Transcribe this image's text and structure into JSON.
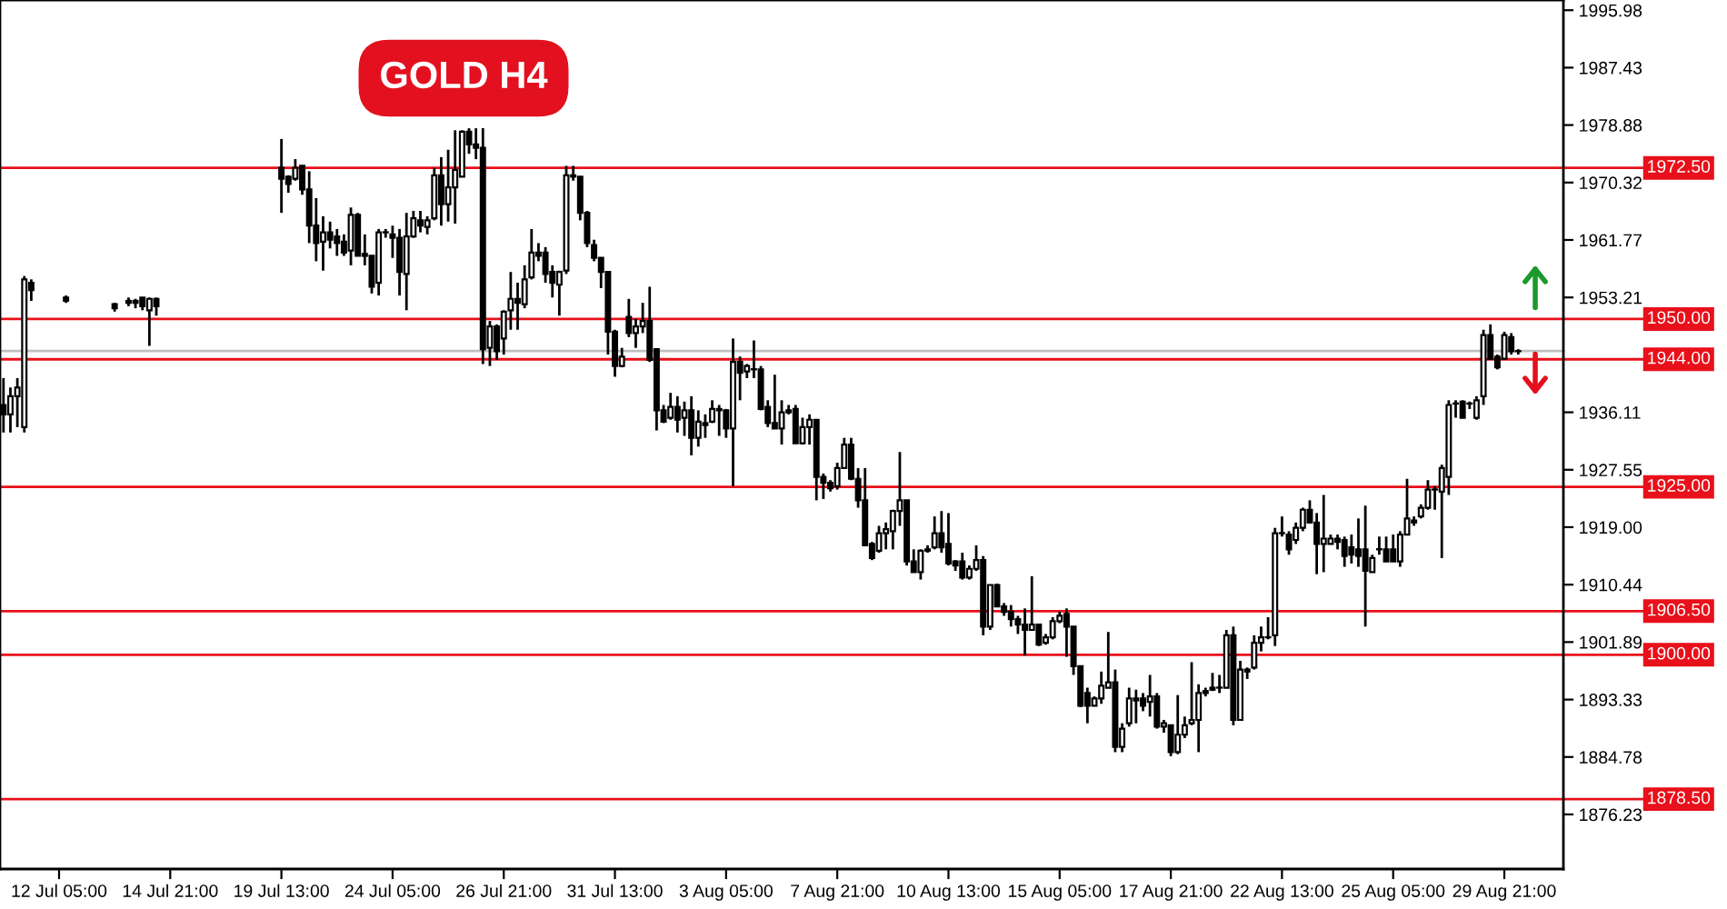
{
  "chart_data": {
    "type": "candlestick",
    "title": "GOLD H4",
    "categories": [
      null,
      null,
      null,
      null,
      null,
      null,
      null,
      null,
      "12 Jul 05:00",
      null,
      null,
      null,
      null,
      null,
      null,
      null,
      null,
      null,
      null,
      null,
      null,
      null,
      null,
      null,
      "14 Jul 21:00",
      null,
      null,
      null,
      null,
      null,
      null,
      null,
      null,
      null,
      null,
      null,
      null,
      null,
      null,
      null,
      "19 Jul 13:00",
      null,
      null,
      null,
      null,
      null,
      null,
      null,
      null,
      null,
      null,
      null,
      null,
      null,
      null,
      null,
      "24 Jul 05:00",
      null,
      null,
      null,
      null,
      null,
      null,
      null,
      null,
      null,
      null,
      null,
      null,
      null,
      null,
      null,
      "26 Jul 21:00",
      null,
      null,
      null,
      null,
      null,
      null,
      null,
      null,
      null,
      null,
      null,
      null,
      null,
      null,
      null,
      "31 Jul 13:00",
      null,
      null,
      null,
      null,
      null,
      null,
      null,
      null,
      null,
      null,
      null,
      null,
      null,
      null,
      null,
      "3 Aug 05:00",
      null,
      null,
      null,
      null,
      null,
      null,
      null,
      null,
      null,
      null,
      null,
      null,
      null,
      null,
      null,
      "7 Aug 21:00",
      null,
      null,
      null,
      null,
      null,
      null,
      null,
      null,
      null,
      null,
      null,
      null,
      null,
      null,
      null,
      "10 Aug 13:00",
      null,
      null,
      null,
      null,
      null,
      null,
      null,
      null,
      null,
      null,
      null,
      null,
      null,
      null,
      null,
      "15 Aug 05:00",
      null,
      null,
      null,
      null,
      null,
      null,
      null,
      null,
      null,
      null,
      null,
      null,
      null,
      null,
      null,
      "17 Aug 21:00",
      null,
      null,
      null,
      null,
      null,
      null,
      null,
      null,
      null,
      null,
      null,
      null,
      null,
      null,
      null,
      "22 Aug 13:00",
      null,
      null,
      null,
      null,
      null,
      null,
      null,
      null,
      null,
      null,
      null,
      null,
      null,
      null,
      null,
      "25 Aug 05:00",
      null,
      null,
      null,
      null,
      null,
      null,
      null,
      null,
      null,
      null,
      null,
      null,
      null,
      null,
      null,
      "29 Aug 21:00",
      null,
      null
    ],
    "ohlc": [
      [
        1937.2,
        1941.2,
        1933.1,
        1935.8
      ],
      [
        1935.8,
        1939.8,
        1933.1,
        1938.5
      ],
      [
        1938.5,
        1941.2,
        1933.9,
        1939.8
      ],
      [
        1933.9,
        1956.4,
        1933.1,
        1955.9
      ],
      [
        1955.4,
        1955.9,
        1952.7,
        1954.3
      ],
      null,
      null,
      null,
      null,
      [
        1953.2,
        1953.5,
        1952.4,
        1952.7
      ],
      null,
      null,
      null,
      null,
      null,
      null,
      [
        1952.2,
        1952.4,
        1951.1,
        1951.6
      ],
      null,
      [
        1952.7,
        1953.2,
        1951.9,
        1952.4
      ],
      [
        1952.4,
        1953.0,
        1951.6,
        1952.7
      ],
      [
        1953.2,
        1953.2,
        1951.3,
        1951.9
      ],
      [
        1951.3,
        1953.2,
        1946.0,
        1953.0
      ],
      [
        1953.0,
        1953.2,
        1950.5,
        1951.9
      ],
      null,
      null,
      null,
      null,
      null,
      null,
      null,
      null,
      null,
      null,
      null,
      null,
      null,
      null,
      null,
      null,
      null,
      [
        1972.5,
        1976.8,
        1965.8,
        1970.9
      ],
      [
        1971.2,
        1971.4,
        1968.8,
        1970.1
      ],
      [
        1970.9,
        1973.8,
        1970.6,
        1972.5
      ],
      [
        1972.8,
        1972.8,
        1968.5,
        1969.3
      ],
      [
        1969.3,
        1972.0,
        1961.3,
        1963.9
      ],
      [
        1963.9,
        1968.0,
        1958.6,
        1961.3
      ],
      [
        1961.5,
        1965.3,
        1957.2,
        1962.9
      ],
      [
        1962.9,
        1964.5,
        1960.5,
        1961.8
      ],
      [
        1962.3,
        1963.4,
        1959.4,
        1961.3
      ],
      [
        1961.5,
        1962.6,
        1959.4,
        1959.9
      ],
      [
        1960.2,
        1966.6,
        1958.0,
        1965.5
      ],
      [
        1965.5,
        1965.8,
        1959.4,
        1959.4
      ],
      [
        1959.7,
        1962.6,
        1958.0,
        1959.4
      ],
      [
        1959.4,
        1959.4,
        1953.8,
        1954.8
      ],
      [
        1955.4,
        1963.4,
        1953.5,
        1962.9
      ],
      [
        1962.9,
        1963.4,
        1962.1,
        1962.9
      ],
      [
        1962.6,
        1963.9,
        1959.1,
        1962.1
      ],
      [
        1962.1,
        1963.4,
        1953.5,
        1957.0
      ],
      [
        1956.7,
        1965.8,
        1951.3,
        1962.3
      ],
      [
        1962.3,
        1966.1,
        1962.1,
        1965.0
      ],
      [
        1964.7,
        1966.1,
        1962.9,
        1963.9
      ],
      [
        1963.7,
        1965.3,
        1962.6,
        1964.7
      ],
      [
        1965.0,
        1972.5,
        1964.7,
        1971.4
      ],
      [
        1971.4,
        1974.1,
        1963.9,
        1967.1
      ],
      [
        1967.1,
        1975.2,
        1964.5,
        1969.6
      ],
      [
        1969.6,
        1978.1,
        1964.2,
        1972.2
      ],
      [
        1971.2,
        1978.1,
        1971.2,
        1977.9
      ],
      [
        1977.9,
        1978.4,
        1974.6,
        1976.0
      ],
      [
        1976.0,
        1978.4,
        1973.8,
        1975.5
      ],
      [
        1975.5,
        1978.4,
        1943.3,
        1945.5
      ],
      [
        1945.7,
        1949.7,
        1943.0,
        1948.9
      ],
      [
        1948.9,
        1949.2,
        1943.9,
        1945.2
      ],
      [
        1947.1,
        1951.3,
        1944.7,
        1951.1
      ],
      [
        1951.3,
        1957.0,
        1948.4,
        1953.0
      ],
      [
        1953.0,
        1955.4,
        1948.4,
        1952.4
      ],
      [
        1952.2,
        1958.0,
        1951.6,
        1955.9
      ],
      [
        1956.2,
        1963.4,
        1955.9,
        1959.9
      ],
      [
        1959.9,
        1961.3,
        1958.6,
        1959.4
      ],
      [
        1959.9,
        1960.7,
        1955.4,
        1956.7
      ],
      [
        1957.0,
        1958.0,
        1953.2,
        1955.4
      ],
      [
        1955.1,
        1957.2,
        1950.5,
        1957.0
      ],
      [
        1957.2,
        1972.8,
        1956.7,
        1971.4
      ],
      [
        1971.4,
        1972.8,
        1970.6,
        1971.2
      ],
      [
        1971.2,
        1971.2,
        1964.7,
        1965.8
      ],
      [
        1965.8,
        1966.1,
        1960.7,
        1961.3
      ],
      [
        1961.0,
        1961.8,
        1958.6,
        1959.1
      ],
      [
        1959.1,
        1959.1,
        1954.6,
        1957.0
      ],
      [
        1957.0,
        1957.0,
        1944.7,
        1948.1
      ],
      [
        1948.1,
        1948.4,
        1941.4,
        1943.0
      ],
      [
        1943.0,
        1945.7,
        1942.8,
        1944.4
      ],
      [
        1950.3,
        1953.0,
        1947.3,
        1947.9
      ],
      [
        1947.9,
        1950.0,
        1945.7,
        1948.9
      ],
      [
        1948.9,
        1952.4,
        1947.9,
        1949.7
      ],
      [
        1949.7,
        1954.8,
        1943.6,
        1943.9
      ],
      [
        1945.5,
        1945.5,
        1933.4,
        1936.4
      ],
      [
        1936.4,
        1937.2,
        1934.5,
        1934.7
      ],
      [
        1935.3,
        1939.0,
        1935.0,
        1936.9
      ],
      [
        1936.9,
        1938.5,
        1933.1,
        1935.0
      ],
      [
        1935.3,
        1937.7,
        1932.6,
        1936.4
      ],
      [
        1936.4,
        1938.5,
        1929.7,
        1932.3
      ],
      [
        1932.3,
        1936.4,
        1931.0,
        1934.7
      ],
      [
        1934.5,
        1935.8,
        1932.3,
        1934.2
      ],
      [
        1934.7,
        1937.9,
        1934.5,
        1936.6
      ],
      [
        1936.6,
        1937.2,
        1932.6,
        1936.4
      ],
      [
        1936.4,
        1936.6,
        1932.3,
        1933.7
      ],
      [
        1933.7,
        1947.1,
        1925.1,
        1943.6
      ],
      [
        1943.6,
        1944.4,
        1937.9,
        1942.0
      ],
      [
        1942.2,
        1943.3,
        1941.2,
        1943.0
      ],
      [
        1942.5,
        1946.8,
        1941.2,
        1942.5
      ],
      [
        1942.5,
        1943.0,
        1936.4,
        1936.6
      ],
      [
        1936.9,
        1937.9,
        1933.9,
        1934.5
      ],
      [
        1934.5,
        1941.7,
        1933.7,
        1933.7
      ],
      [
        1933.7,
        1937.9,
        1931.3,
        1936.1
      ],
      [
        1936.1,
        1937.2,
        1935.8,
        1936.4
      ],
      [
        1936.6,
        1937.2,
        1931.5,
        1931.5
      ],
      [
        1931.5,
        1935.3,
        1931.3,
        1933.9
      ],
      [
        1933.9,
        1935.8,
        1931.3,
        1935.0
      ],
      [
        1935.0,
        1935.0,
        1923.0,
        1926.5
      ],
      [
        1926.5,
        1927.0,
        1923.2,
        1925.6
      ],
      [
        1925.6,
        1926.0,
        1924.3,
        1924.8
      ],
      [
        1925.1,
        1928.6,
        1924.6,
        1927.8
      ],
      [
        1927.8,
        1932.3,
        1927.8,
        1931.3
      ],
      [
        1931.3,
        1932.3,
        1926.0,
        1926.2
      ],
      [
        1926.2,
        1927.8,
        1921.9,
        1923.0
      ],
      [
        1923.0,
        1927.8,
        1916.3,
        1916.3
      ],
      [
        1916.5,
        1916.8,
        1914.1,
        1914.4
      ],
      [
        1915.5,
        1919.2,
        1915.2,
        1918.1
      ],
      [
        1918.1,
        1919.7,
        1915.7,
        1918.7
      ],
      [
        1918.4,
        1921.6,
        1915.7,
        1921.4
      ],
      [
        1921.4,
        1930.2,
        1919.2,
        1923.0
      ],
      [
        1923.0,
        1923.0,
        1913.3,
        1913.9
      ],
      [
        1913.9,
        1915.7,
        1912.3,
        1912.3
      ],
      [
        1912.3,
        1915.7,
        1911.2,
        1915.5
      ],
      [
        1915.5,
        1916.3,
        1915.2,
        1915.7
      ],
      [
        1916.0,
        1920.6,
        1915.7,
        1918.1
      ],
      [
        1918.1,
        1921.4,
        1915.2,
        1916.0
      ],
      [
        1916.5,
        1921.1,
        1913.3,
        1913.6
      ],
      [
        1913.9,
        1914.1,
        1912.5,
        1913.3
      ],
      [
        1913.9,
        1915.2,
        1911.2,
        1911.5
      ],
      [
        1911.5,
        1913.3,
        1911.2,
        1912.8
      ],
      [
        1912.8,
        1916.3,
        1912.5,
        1914.1
      ],
      [
        1914.1,
        1914.7,
        1902.9,
        1904.2
      ],
      [
        1904.2,
        1910.4,
        1903.7,
        1910.4
      ],
      [
        1910.4,
        1910.6,
        1907.2,
        1907.2
      ],
      [
        1907.2,
        1907.7,
        1905.8,
        1906.4
      ],
      [
        1906.4,
        1907.4,
        1904.2,
        1905.3
      ],
      [
        1905.3,
        1905.8,
        1903.1,
        1904.5
      ],
      [
        1904.5,
        1906.9,
        1899.9,
        1903.7
      ],
      [
        1903.7,
        1911.7,
        1903.7,
        1904.5
      ],
      [
        1904.5,
        1904.5,
        1901.3,
        1901.5
      ],
      [
        1901.8,
        1903.1,
        1901.5,
        1902.6
      ],
      [
        1902.6,
        1905.6,
        1902.3,
        1905.0
      ],
      [
        1905.0,
        1906.4,
        1904.7,
        1905.8
      ],
      [
        1906.1,
        1906.9,
        1899.7,
        1904.2
      ],
      [
        1904.2,
        1904.2,
        1897.0,
        1898.3
      ],
      [
        1898.3,
        1898.3,
        1892.2,
        1892.4
      ],
      [
        1894.3,
        1895.1,
        1889.8,
        1892.4
      ],
      [
        1892.4,
        1893.8,
        1892.4,
        1893.5
      ],
      [
        1893.5,
        1897.5,
        1892.7,
        1895.4
      ],
      [
        1895.1,
        1903.4,
        1895.1,
        1895.9
      ],
      [
        1895.9,
        1897.8,
        1885.5,
        1886.3
      ],
      [
        1886.3,
        1889.8,
        1885.5,
        1889.0
      ],
      [
        1889.8,
        1895.1,
        1889.3,
        1893.5
      ],
      [
        1893.2,
        1894.8,
        1889.8,
        1893.5
      ],
      [
        1893.5,
        1894.3,
        1891.6,
        1892.4
      ],
      [
        1893.0,
        1897.0,
        1890.8,
        1893.8
      ],
      [
        1893.8,
        1894.3,
        1889.0,
        1889.3
      ],
      [
        1889.3,
        1890.3,
        1888.4,
        1889.8
      ],
      [
        1889.5,
        1889.5,
        1884.9,
        1885.5
      ],
      [
        1885.5,
        1894.0,
        1885.2,
        1888.1
      ],
      [
        1888.1,
        1890.8,
        1887.6,
        1889.5
      ],
      [
        1889.8,
        1898.9,
        1889.5,
        1890.3
      ],
      [
        1890.3,
        1895.6,
        1885.5,
        1894.3
      ],
      [
        1894.3,
        1895.1,
        1893.8,
        1894.6
      ],
      [
        1895.1,
        1897.3,
        1894.6,
        1894.8
      ],
      [
        1895.1,
        1897.0,
        1894.3,
        1895.1
      ],
      [
        1895.1,
        1903.7,
        1895.1,
        1902.9
      ],
      [
        1902.9,
        1904.2,
        1889.5,
        1890.3
      ],
      [
        1890.3,
        1899.1,
        1890.3,
        1897.8
      ],
      [
        1897.8,
        1898.1,
        1896.4,
        1897.5
      ],
      [
        1898.1,
        1902.9,
        1897.8,
        1901.8
      ],
      [
        1901.8,
        1904.2,
        1900.5,
        1902.6
      ],
      [
        1902.6,
        1905.6,
        1902.3,
        1902.6
      ],
      [
        1902.9,
        1918.9,
        1901.3,
        1918.1
      ],
      [
        1918.1,
        1920.6,
        1917.6,
        1918.1
      ],
      [
        1917.9,
        1918.4,
        1914.9,
        1915.7
      ],
      [
        1917.1,
        1919.7,
        1916.5,
        1918.9
      ],
      [
        1918.9,
        1921.9,
        1918.4,
        1921.6
      ],
      [
        1921.6,
        1923.0,
        1919.7,
        1919.7
      ],
      [
        1919.7,
        1921.1,
        1912.0,
        1916.5
      ],
      [
        1916.5,
        1923.8,
        1912.3,
        1917.3
      ],
      [
        1916.5,
        1917.9,
        1916.5,
        1917.3
      ],
      [
        1917.3,
        1917.9,
        1915.7,
        1916.8
      ],
      [
        1917.1,
        1917.6,
        1913.1,
        1914.7
      ],
      [
        1916.0,
        1917.9,
        1913.6,
        1914.9
      ],
      [
        1915.7,
        1920.3,
        1913.1,
        1914.7
      ],
      [
        1915.7,
        1922.2,
        1904.2,
        1912.5
      ],
      [
        1912.3,
        1914.9,
        1912.3,
        1914.4
      ],
      [
        1915.7,
        1917.6,
        1914.9,
        1915.7
      ],
      [
        1915.7,
        1917.6,
        1913.9,
        1913.9
      ],
      [
        1915.7,
        1917.9,
        1913.9,
        1913.9
      ],
      [
        1913.9,
        1918.4,
        1913.1,
        1917.9
      ],
      [
        1917.9,
        1926.2,
        1917.9,
        1920.3
      ],
      [
        1919.7,
        1920.6,
        1919.2,
        1920.0
      ],
      [
        1920.6,
        1922.4,
        1920.3,
        1921.9
      ],
      [
        1921.9,
        1926.0,
        1921.6,
        1924.6
      ],
      [
        1924.6,
        1925.1,
        1921.6,
        1924.6
      ],
      [
        1924.3,
        1928.3,
        1914.4,
        1927.8
      ],
      [
        1926.5,
        1937.9,
        1923.8,
        1937.2
      ],
      [
        1937.4,
        1937.9,
        1935.3,
        1937.4
      ],
      [
        1937.7,
        1937.9,
        1935.3,
        1935.3
      ],
      [
        1937.4,
        1937.7,
        1936.6,
        1937.4
      ],
      [
        1935.3,
        1938.5,
        1935.0,
        1937.9
      ],
      [
        1938.5,
        1948.4,
        1937.2,
        1947.6
      ],
      [
        1947.6,
        1949.2,
        1943.9,
        1944.1
      ],
      [
        1944.4,
        1944.7,
        1942.5,
        1942.8
      ],
      [
        1944.1,
        1948.1,
        1944.1,
        1947.6
      ],
      [
        1947.3,
        1947.9,
        1944.7,
        1945.2
      ],
      [
        1945.2,
        1945.5,
        1944.7,
        1945.2
      ]
    ],
    "ylim": [
      1868.1,
      1997.5
    ],
    "yticks": [
      1876.23,
      1884.78,
      1893.33,
      1901.89,
      1910.44,
      {
        "value": 1919.0,
        "label": "1919.00"
      },
      1927.55,
      1936.11,
      1953.21,
      1961.77,
      1970.32,
      1978.88,
      1987.43,
      1995.98
    ],
    "ref_lines": [
      {
        "axis": "y",
        "value": 1972.5,
        "label": "1972.50",
        "color": "#e8101a"
      },
      {
        "axis": "y",
        "value": 1950.0,
        "label": "1950.00",
        "color": "#e8101a"
      },
      {
        "axis": "y",
        "value": 1945.25,
        "label": null,
        "color": "#c0c0c0"
      },
      {
        "axis": "y",
        "value": 1944.0,
        "label": "1944.00",
        "color": "#e8101a"
      },
      {
        "axis": "y",
        "value": 1925.0,
        "label": "1925.00",
        "color": "#e8101a"
      },
      {
        "axis": "y",
        "value": 1906.5,
        "label": "1906.50",
        "color": "#e8101a"
      },
      {
        "axis": "y",
        "value": 1900.0,
        "label": "1900.00",
        "color": "#e8101a"
      },
      {
        "axis": "y",
        "value": 1878.5,
        "label": "1878.50",
        "color": "#e8101a"
      }
    ],
    "grid": false,
    "legend": false
  }
}
